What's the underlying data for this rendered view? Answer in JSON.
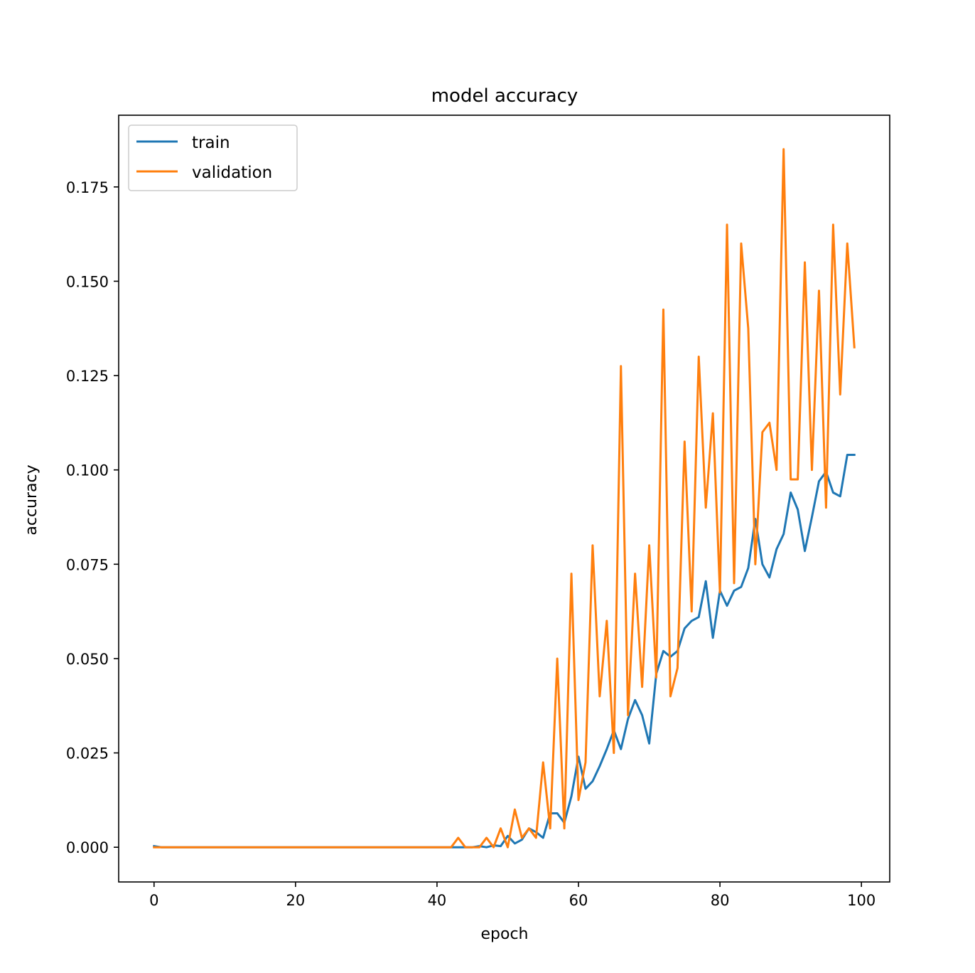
{
  "chart_data": {
    "type": "line",
    "title": "model accuracy",
    "xlabel": "epoch",
    "ylabel": "accuracy",
    "xlim": [
      -5,
      104
    ],
    "ylim": [
      -0.0092,
      0.194
    ],
    "xticks": [
      0,
      20,
      40,
      60,
      80,
      100
    ],
    "xtick_labels": [
      "0",
      "20",
      "40",
      "60",
      "80",
      "100"
    ],
    "yticks": [
      0.0,
      0.025,
      0.05,
      0.075,
      0.1,
      0.125,
      0.15,
      0.175
    ],
    "ytick_labels": [
      "0.000",
      "0.025",
      "0.050",
      "0.075",
      "0.100",
      "0.125",
      "0.150",
      "0.175"
    ],
    "legend_position": "upper-left",
    "grid": false,
    "series": [
      {
        "name": "train",
        "color": "#1f77b4",
        "x": [
          0,
          1,
          2,
          3,
          4,
          5,
          6,
          7,
          8,
          9,
          10,
          11,
          12,
          13,
          14,
          15,
          16,
          17,
          18,
          19,
          20,
          21,
          22,
          23,
          24,
          25,
          26,
          27,
          28,
          29,
          30,
          31,
          32,
          33,
          34,
          35,
          36,
          37,
          38,
          39,
          40,
          41,
          42,
          43,
          44,
          45,
          46,
          47,
          48,
          49,
          50,
          51,
          52,
          53,
          54,
          55,
          56,
          57,
          58,
          59,
          60,
          61,
          62,
          63,
          64,
          65,
          66,
          67,
          68,
          69,
          70,
          71,
          72,
          73,
          74,
          75,
          76,
          77,
          78,
          79,
          80,
          81,
          82,
          83,
          84,
          85,
          86,
          87,
          88,
          89,
          90,
          91,
          92,
          93,
          94,
          95,
          96,
          97,
          98,
          99
        ],
        "values": [
          0.0003,
          0,
          0,
          0,
          0,
          0,
          0,
          0,
          0,
          0,
          0,
          0,
          0,
          0,
          0,
          0,
          0,
          0,
          0,
          0,
          0,
          0,
          0,
          0,
          0,
          0,
          0,
          0,
          0,
          0,
          0,
          0,
          0,
          0,
          0,
          0,
          0,
          0,
          0,
          0,
          0,
          0,
          0,
          0,
          0,
          0,
          0.0003,
          0,
          0.0005,
          0.0003,
          0.003,
          0.001,
          0.002,
          0.005,
          0.004,
          0.0025,
          0.009,
          0.009,
          0.0065,
          0.0135,
          0.024,
          0.0155,
          0.0175,
          0.0215,
          0.026,
          0.031,
          0.026,
          0.034,
          0.039,
          0.035,
          0.0275,
          0.046,
          0.052,
          0.0505,
          0.052,
          0.058,
          0.06,
          0.061,
          0.0705,
          0.0555,
          0.068,
          0.064,
          0.068,
          0.069,
          0.074,
          0.087,
          0.075,
          0.0715,
          0.079,
          0.083,
          0.094,
          0.0895,
          0.0785,
          0.0875,
          0.097,
          0.0995,
          0.094,
          0.093,
          0.104,
          0.104
        ]
      },
      {
        "name": "validation",
        "color": "#ff7f0e",
        "x": [
          0,
          1,
          2,
          3,
          4,
          5,
          6,
          7,
          8,
          9,
          10,
          11,
          12,
          13,
          14,
          15,
          16,
          17,
          18,
          19,
          20,
          21,
          22,
          23,
          24,
          25,
          26,
          27,
          28,
          29,
          30,
          31,
          32,
          33,
          34,
          35,
          36,
          37,
          38,
          39,
          40,
          41,
          42,
          43,
          44,
          45,
          46,
          47,
          48,
          49,
          50,
          51,
          52,
          53,
          54,
          55,
          56,
          57,
          58,
          59,
          60,
          61,
          62,
          63,
          64,
          65,
          66,
          67,
          68,
          69,
          70,
          71,
          72,
          73,
          74,
          75,
          76,
          77,
          78,
          79,
          80,
          81,
          82,
          83,
          84,
          85,
          86,
          87,
          88,
          89,
          90,
          91,
          92,
          93,
          94,
          95,
          96,
          97,
          98,
          99
        ],
        "values": [
          0,
          0,
          0,
          0,
          0,
          0,
          0,
          0,
          0,
          0,
          0,
          0,
          0,
          0,
          0,
          0,
          0,
          0,
          0,
          0,
          0,
          0,
          0,
          0,
          0,
          0,
          0,
          0,
          0,
          0,
          0,
          0,
          0,
          0,
          0,
          0,
          0,
          0,
          0,
          0,
          0,
          0,
          0,
          0.0025,
          0,
          0,
          0,
          0.0025,
          0,
          0.005,
          0,
          0.01,
          0.0025,
          0.005,
          0.0025,
          0.0225,
          0.005,
          0.05,
          0.005,
          0.0725,
          0.0125,
          0.0225,
          0.08,
          0.04,
          0.06,
          0.025,
          0.1275,
          0.035,
          0.0725,
          0.0425,
          0.08,
          0.045,
          0.1425,
          0.04,
          0.0475,
          0.1075,
          0.0625,
          0.13,
          0.09,
          0.115,
          0.0675,
          0.165,
          0.07,
          0.16,
          0.1375,
          0.075,
          0.11,
          0.1125,
          0.1,
          0.185,
          0.0975,
          0.0975,
          0.155,
          0.1,
          0.1475,
          0.09,
          0.165,
          0.12,
          0.16,
          0.1325
        ]
      }
    ]
  }
}
